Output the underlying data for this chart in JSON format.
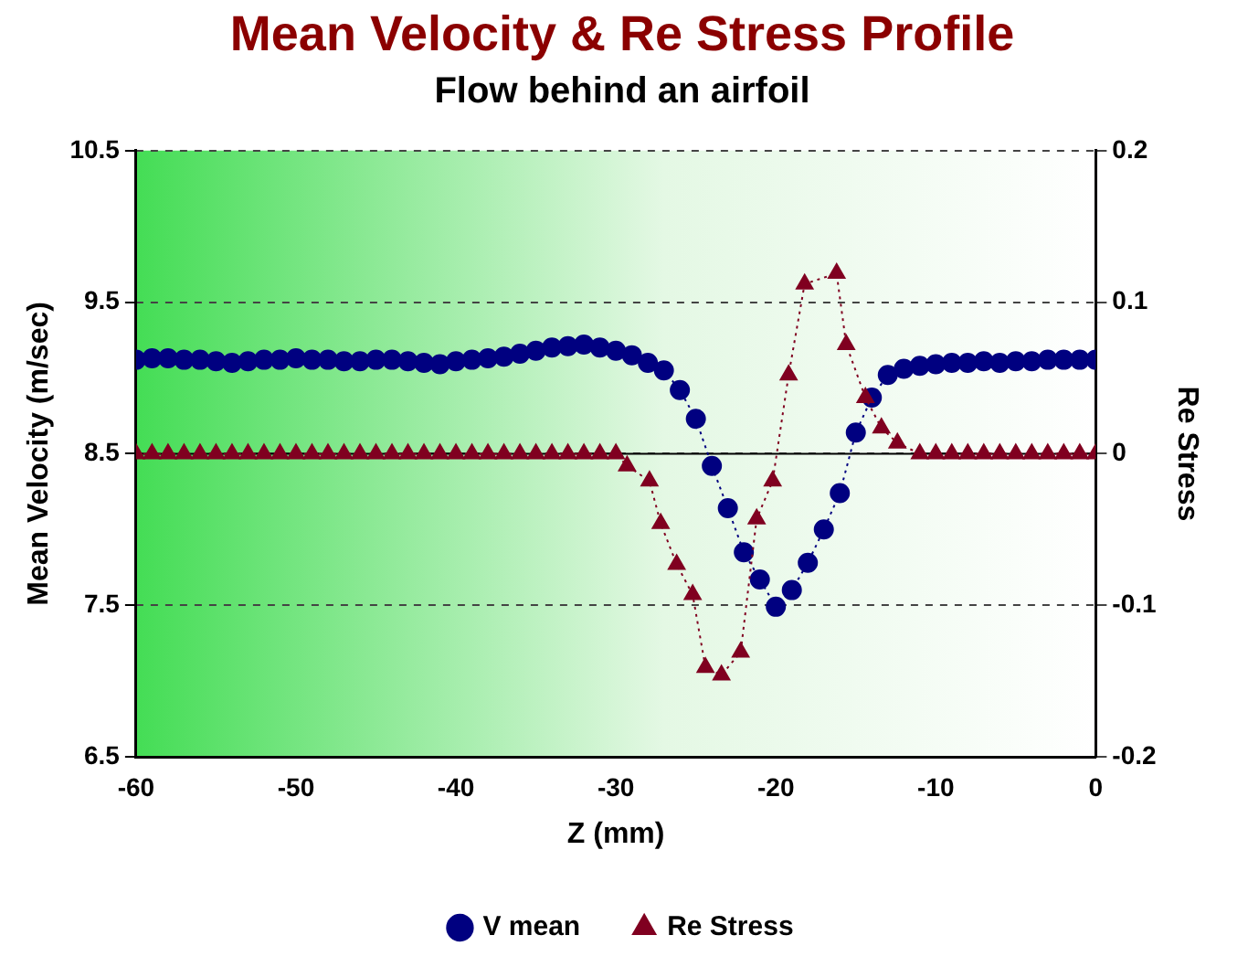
{
  "chart_data": {
    "type": "line",
    "title": "Mean Velocity & Re Stress Profile",
    "subtitle": "Flow behind an airfoil",
    "xlabel": "Z (mm)",
    "ylabel": "Mean Velocity (m/sec)",
    "y2label": "Re Stress",
    "xlim": [
      -60,
      0
    ],
    "xticks": [
      -60,
      -50,
      -40,
      -30,
      -20,
      -10,
      0
    ],
    "ylim": [
      6.5,
      10.5
    ],
    "yticks": [
      6.5,
      7.5,
      8.5,
      9.5,
      10.5
    ],
    "y2lim": [
      -0.2,
      0.2
    ],
    "y2ticks": [
      -0.2,
      -0.1,
      0,
      0.1,
      0.2
    ],
    "grid": "y",
    "legend": "bottom",
    "line_style": "dotted",
    "ref_lines": [
      {
        "axis": "y2",
        "value": 0,
        "color": "#000000",
        "line_style": "solid"
      }
    ],
    "series": [
      {
        "name": "V mean",
        "color": "#000080",
        "marker": "circle",
        "x": [
          -60,
          -59,
          -58,
          -57,
          -56,
          -55,
          -54,
          -53,
          -52,
          -51,
          -50,
          -49,
          -48,
          -47,
          -46,
          -45,
          -44,
          -43,
          -42,
          -41,
          -40,
          -39,
          -38,
          -37,
          -36,
          -35,
          -34,
          -33,
          -32,
          -31,
          -30,
          -29,
          -28,
          -27,
          -26,
          -25,
          -24,
          -23,
          -22,
          -21,
          -20,
          -19,
          -18,
          -17,
          -16,
          -15,
          -14,
          -13,
          -12,
          -11,
          -10,
          -9,
          -8,
          -7,
          -6,
          -5,
          -4,
          -3,
          -2,
          -1,
          0
        ],
        "values": [
          9.12,
          9.13,
          9.13,
          9.12,
          9.12,
          9.11,
          9.1,
          9.11,
          9.12,
          9.12,
          9.13,
          9.12,
          9.12,
          9.11,
          9.11,
          9.12,
          9.12,
          9.11,
          9.1,
          9.09,
          9.11,
          9.12,
          9.13,
          9.14,
          9.16,
          9.18,
          9.2,
          9.21,
          9.22,
          9.2,
          9.18,
          9.15,
          9.1,
          9.05,
          8.92,
          8.73,
          8.42,
          8.14,
          7.85,
          7.67,
          7.49,
          7.6,
          7.78,
          8.0,
          8.24,
          8.64,
          8.87,
          9.02,
          9.06,
          9.08,
          9.09,
          9.1,
          9.1,
          9.11,
          9.1,
          9.11,
          9.11,
          9.12,
          9.12,
          9.12,
          9.12
        ]
      },
      {
        "name": "Re Stress",
        "color": "#800020",
        "marker": "triangle",
        "axis": "y2",
        "x": [
          -60,
          -59,
          -58,
          -57,
          -56,
          -55,
          -54,
          -53,
          -52,
          -51,
          -50,
          -49,
          -48,
          -47,
          -46,
          -45,
          -44,
          -43,
          -42,
          -41,
          -40,
          -39,
          -38,
          -37,
          -36,
          -35,
          -34,
          -33,
          -32,
          -31,
          -30,
          -29.3,
          -27.9,
          -27.2,
          -26.2,
          -25.2,
          -24.4,
          -23.4,
          -22.2,
          -21.2,
          -20.2,
          -19.2,
          -18.2,
          -16.2,
          -15.6,
          -14.4,
          -13.4,
          -12.4,
          -11,
          -10,
          -9,
          -8,
          -7,
          -6,
          -5,
          -4,
          -3,
          -2,
          -1,
          0
        ],
        "values": [
          0,
          0,
          0,
          0,
          0,
          0,
          0,
          0,
          0,
          0,
          0,
          0,
          0,
          0,
          0,
          0,
          0,
          0,
          0,
          0,
          0,
          0,
          0,
          0,
          0,
          0,
          0,
          0,
          0,
          0,
          0,
          -0.008,
          -0.018,
          -0.046,
          -0.073,
          -0.093,
          -0.141,
          -0.146,
          -0.131,
          -0.043,
          -0.018,
          0.052,
          0.112,
          0.119,
          0.072,
          0.037,
          0.017,
          0.007,
          0,
          0,
          0,
          0,
          0,
          0,
          0,
          0,
          0,
          0,
          0,
          0
        ]
      }
    ]
  }
}
